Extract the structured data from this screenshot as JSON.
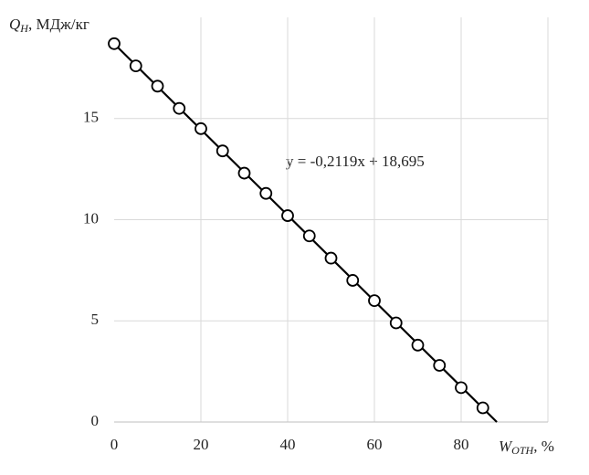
{
  "chart_data": {
    "type": "scatter",
    "ylabel": {
      "symbol": "Q",
      "subscript": "H",
      "unit": ", МДж/кг"
    },
    "xlabel": {
      "symbol": "W",
      "subscript": "OTH",
      "unit": ", %"
    },
    "x": [
      0,
      5,
      10,
      15,
      20,
      25,
      30,
      35,
      40,
      45,
      50,
      55,
      60,
      65,
      70,
      75,
      80,
      85
    ],
    "series": [
      {
        "color": "#000000",
        "values": [
          18.7,
          17.6,
          16.6,
          15.5,
          14.5,
          13.4,
          12.3,
          11.3,
          10.2,
          9.2,
          8.1,
          7.0,
          6.0,
          4.9,
          3.8,
          2.8,
          1.7,
          0.7
        ]
      }
    ],
    "trendline": {
      "slope": -0.2119,
      "intercept": 18.695,
      "label": "y = -0,2119x + 18,695"
    },
    "xlim": [
      0,
      100
    ],
    "xticks": [
      0,
      20,
      40,
      60,
      80
    ],
    "ylim": [
      0,
      20
    ],
    "yticks": [
      0,
      5,
      10,
      15
    ],
    "grid": true
  }
}
